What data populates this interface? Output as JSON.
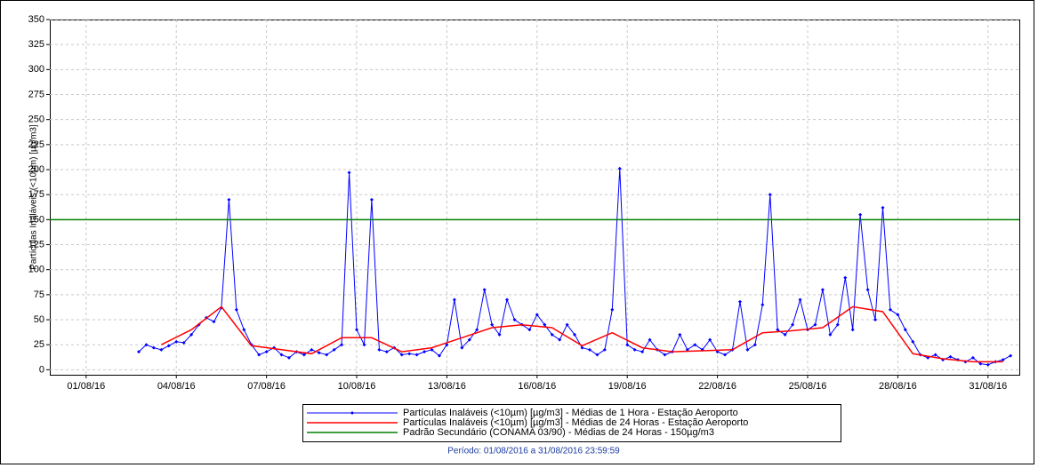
{
  "chart_data": {
    "type": "line",
    "ylabel": "Partículas Inaláveis (<10µm) [µg/m3]",
    "subtitle": "Período: 01/08/2016 a 31/08/2016 23:59:59",
    "xlim": [
      "2016-07-30T19:00",
      "2016-09-01T01:00"
    ],
    "ylim": [
      -5,
      350
    ],
    "yticks": [
      0,
      25,
      50,
      75,
      100,
      125,
      150,
      175,
      200,
      225,
      250,
      275,
      300,
      325,
      350
    ],
    "xticks": [
      {
        "value": "2016-08-01T00:00",
        "label": "01/08/16"
      },
      {
        "value": "2016-08-04T00:00",
        "label": "04/08/16"
      },
      {
        "value": "2016-08-07T00:00",
        "label": "07/08/16"
      },
      {
        "value": "2016-08-10T00:00",
        "label": "10/08/16"
      },
      {
        "value": "2016-08-13T00:00",
        "label": "13/08/16"
      },
      {
        "value": "2016-08-16T00:00",
        "label": "16/08/16"
      },
      {
        "value": "2016-08-19T00:00",
        "label": "19/08/16"
      },
      {
        "value": "2016-08-22T00:00",
        "label": "22/08/16"
      },
      {
        "value": "2016-08-25T00:00",
        "label": "25/08/16"
      },
      {
        "value": "2016-08-28T00:00",
        "label": "28/08/16"
      },
      {
        "value": "2016-08-31T00:00",
        "label": "31/08/16"
      }
    ],
    "grid": true,
    "series": [
      {
        "name": "Partículas Inaláveis (<10µm) [µg/m3] - Médias de 1 Hora -  Estação Aeroporto",
        "color": "#0000ff",
        "marker": true,
        "x": [
          "2016-08-02T18:00",
          "2016-08-03T00:00",
          "2016-08-03T06:00",
          "2016-08-03T12:00",
          "2016-08-03T18:00",
          "2016-08-04T00:00",
          "2016-08-04T06:00",
          "2016-08-04T12:00",
          "2016-08-04T18:00",
          "2016-08-05T00:00",
          "2016-08-05T06:00",
          "2016-08-05T12:00",
          "2016-08-05T18:00",
          "2016-08-06T00:00",
          "2016-08-06T06:00",
          "2016-08-06T12:00",
          "2016-08-06T18:00",
          "2016-08-07T00:00",
          "2016-08-07T06:00",
          "2016-08-07T12:00",
          "2016-08-07T18:00",
          "2016-08-08T00:00",
          "2016-08-08T06:00",
          "2016-08-08T12:00",
          "2016-08-08T18:00",
          "2016-08-09T00:00",
          "2016-08-09T06:00",
          "2016-08-09T12:00",
          "2016-08-09T18:00",
          "2016-08-10T00:00",
          "2016-08-10T06:00",
          "2016-08-10T12:00",
          "2016-08-10T18:00",
          "2016-08-11T00:00",
          "2016-08-11T06:00",
          "2016-08-11T12:00",
          "2016-08-11T18:00",
          "2016-08-12T00:00",
          "2016-08-12T06:00",
          "2016-08-12T12:00",
          "2016-08-12T18:00",
          "2016-08-13T00:00",
          "2016-08-13T06:00",
          "2016-08-13T12:00",
          "2016-08-13T18:00",
          "2016-08-14T00:00",
          "2016-08-14T06:00",
          "2016-08-14T12:00",
          "2016-08-14T18:00",
          "2016-08-15T00:00",
          "2016-08-15T06:00",
          "2016-08-15T12:00",
          "2016-08-15T18:00",
          "2016-08-16T00:00",
          "2016-08-16T06:00",
          "2016-08-16T12:00",
          "2016-08-16T18:00",
          "2016-08-17T00:00",
          "2016-08-17T06:00",
          "2016-08-17T12:00",
          "2016-08-17T18:00",
          "2016-08-18T00:00",
          "2016-08-18T06:00",
          "2016-08-18T12:00",
          "2016-08-18T18:00",
          "2016-08-19T00:00",
          "2016-08-19T06:00",
          "2016-08-19T12:00",
          "2016-08-19T18:00",
          "2016-08-20T00:00",
          "2016-08-20T06:00",
          "2016-08-20T12:00",
          "2016-08-20T18:00",
          "2016-08-21T00:00",
          "2016-08-21T06:00",
          "2016-08-21T12:00",
          "2016-08-21T18:00",
          "2016-08-22T00:00",
          "2016-08-22T06:00",
          "2016-08-22T12:00",
          "2016-08-22T18:00",
          "2016-08-23T00:00",
          "2016-08-23T06:00",
          "2016-08-23T12:00",
          "2016-08-23T18:00",
          "2016-08-24T00:00",
          "2016-08-24T06:00",
          "2016-08-24T12:00",
          "2016-08-24T18:00",
          "2016-08-25T00:00",
          "2016-08-25T06:00",
          "2016-08-25T12:00",
          "2016-08-25T18:00",
          "2016-08-26T00:00",
          "2016-08-26T06:00",
          "2016-08-26T12:00",
          "2016-08-26T18:00",
          "2016-08-27T00:00",
          "2016-08-27T06:00",
          "2016-08-27T12:00",
          "2016-08-27T18:00",
          "2016-08-28T00:00",
          "2016-08-28T06:00",
          "2016-08-28T12:00",
          "2016-08-28T18:00",
          "2016-08-29T00:00",
          "2016-08-29T06:00",
          "2016-08-29T12:00",
          "2016-08-29T18:00",
          "2016-08-30T00:00",
          "2016-08-30T06:00",
          "2016-08-30T12:00",
          "2016-08-30T18:00",
          "2016-08-31T00:00",
          "2016-08-31T06:00",
          "2016-08-31T12:00",
          "2016-08-31T18:00"
        ],
        "values": [
          18,
          25,
          22,
          20,
          24,
          28,
          27,
          35,
          45,
          52,
          48,
          62,
          170,
          60,
          40,
          25,
          15,
          18,
          22,
          15,
          12,
          18,
          15,
          20,
          17,
          15,
          20,
          25,
          197,
          40,
          25,
          170,
          20,
          18,
          22,
          15,
          16,
          15,
          18,
          20,
          14,
          25,
          70,
          22,
          30,
          40,
          80,
          45,
          35,
          70,
          50,
          45,
          40,
          55,
          45,
          35,
          30,
          45,
          35,
          22,
          20,
          15,
          20,
          60,
          201,
          25,
          20,
          18,
          30,
          20,
          15,
          18,
          35,
          20,
          25,
          20,
          30,
          18,
          15,
          20,
          68,
          20,
          25,
          65,
          175,
          40,
          35,
          45,
          70,
          40,
          45,
          80,
          35,
          45,
          92,
          40,
          155,
          80,
          50,
          162,
          60,
          55,
          40,
          28,
          15,
          12,
          15,
          10,
          13,
          10,
          8,
          12,
          6,
          5,
          8,
          10,
          14
        ]
      },
      {
        "name": "Partículas Inaláveis (<10µm) [µg/m3] - Médias de 24 Horas -  Estação Aeroporto",
        "color": "#ff0000",
        "x": [
          "2016-08-03T12:00",
          "2016-08-04T12:00",
          "2016-08-05T12:00",
          "2016-08-06T12:00",
          "2016-08-07T12:00",
          "2016-08-08T12:00",
          "2016-08-09T12:00",
          "2016-08-10T12:00",
          "2016-08-11T12:00",
          "2016-08-12T12:00",
          "2016-08-13T12:00",
          "2016-08-14T12:00",
          "2016-08-15T12:00",
          "2016-08-16T12:00",
          "2016-08-17T12:00",
          "2016-08-18T12:00",
          "2016-08-19T12:00",
          "2016-08-20T12:00",
          "2016-08-21T12:00",
          "2016-08-22T12:00",
          "2016-08-23T12:00",
          "2016-08-24T12:00",
          "2016-08-25T12:00",
          "2016-08-26T12:00",
          "2016-08-27T12:00",
          "2016-08-28T12:00",
          "2016-08-29T12:00",
          "2016-08-30T12:00",
          "2016-08-31T12:00"
        ],
        "values": [
          25,
          40,
          63,
          24,
          20,
          16,
          32,
          32,
          18,
          22,
          32,
          42,
          45,
          42,
          24,
          37,
          22,
          18,
          19,
          20,
          37,
          39,
          42,
          63,
          58,
          16,
          11,
          8,
          8
        ]
      },
      {
        "name": "Padrão Secundário (CONAMA 03/90) - Médias de 24 Horas - 150µg/m3",
        "color": "#008000",
        "type": "hline",
        "values": [
          150
        ]
      }
    ]
  }
}
